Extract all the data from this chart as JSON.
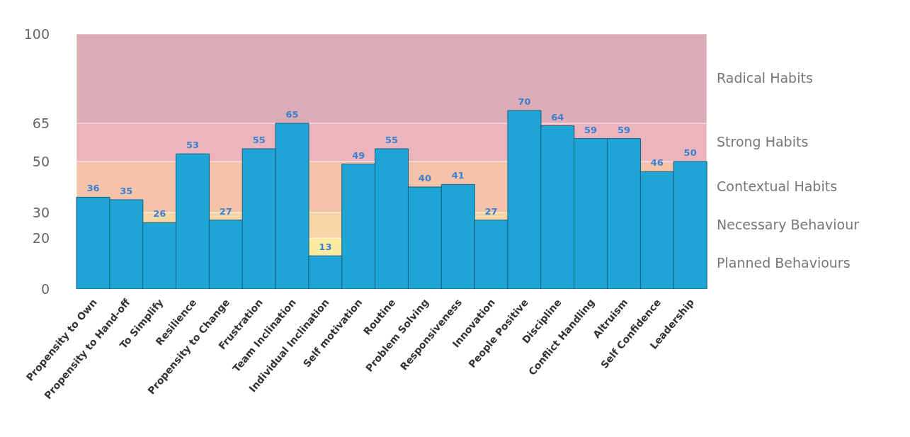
{
  "chart_data": {
    "type": "bar",
    "categories": [
      "Propensity to Own",
      "Propensity to Hand-off",
      "To Simplify",
      "Resilience",
      "Propensity to Change",
      "Frustration",
      "Team Inclination",
      "Individual Inclination",
      "Self motivation",
      "Routine",
      "Problem Solving",
      "Responsiveness",
      "Innovation",
      "People Positive",
      "Discipline",
      "Conflict Handling",
      "Altruism",
      "Self Confidence",
      "Leadership"
    ],
    "values": [
      36,
      35,
      26,
      53,
      27,
      55,
      65,
      13,
      49,
      55,
      40,
      41,
      27,
      70,
      64,
      59,
      59,
      46,
      50
    ],
    "color": "#1ea5d6",
    "ylim": [
      0,
      100
    ],
    "yticks": [
      0,
      20,
      30,
      50,
      65,
      100
    ],
    "data_labels": true,
    "bands": [
      {
        "axis": "y",
        "from": 0,
        "to": 20,
        "label": "Planned Behaviours",
        "color": "#fbeaa2"
      },
      {
        "axis": "y",
        "from": 20,
        "to": 30,
        "label": "Necessary Behaviour",
        "color": "#f6d6a6"
      },
      {
        "axis": "y",
        "from": 30,
        "to": 50,
        "label": "Contextual Habits",
        "color": "#f4c3aa"
      },
      {
        "axis": "y",
        "from": 50,
        "to": 65,
        "label": "Strong Habits",
        "color": "#ecb5bd"
      },
      {
        "axis": "y",
        "from": 65,
        "to": 100,
        "label": "Radical Habits",
        "color": "#dcadb6"
      }
    ]
  }
}
